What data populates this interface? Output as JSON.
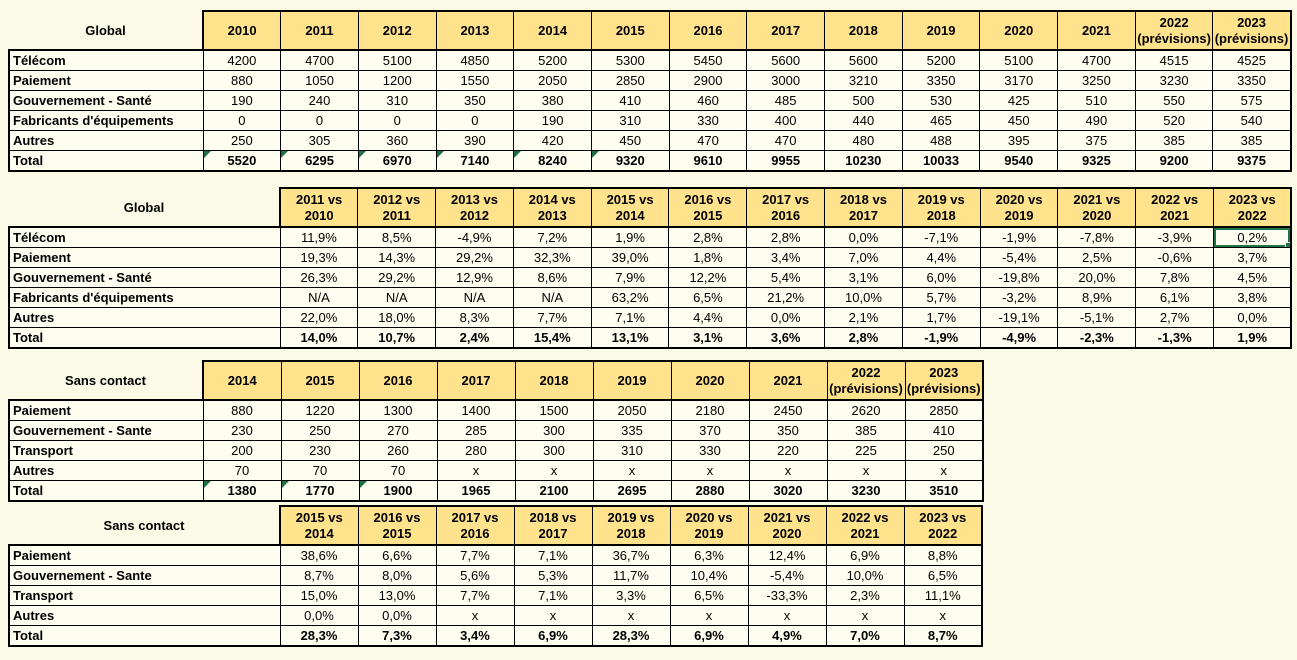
{
  "app": {
    "kind": "spreadsheet-screenshot"
  },
  "colors": {
    "page_background": "#FAFAE6",
    "cell_background": "#FDFDF0",
    "header_fill": "#FFE28C",
    "border": "#000000",
    "error_triangle": "#1E7145",
    "selection_border": "#217346"
  },
  "tables": [
    {
      "id": "global-values",
      "title": "Global",
      "columns": [
        "2010",
        "2011",
        "2012",
        "2013",
        "2014",
        "2015",
        "2016",
        "2017",
        "2018",
        "2019",
        "2020",
        "2021",
        "2022 (prévisions)",
        "2023 (prévisions)"
      ],
      "rows": [
        {
          "label": "Télécom",
          "values": [
            "4200",
            "4700",
            "5100",
            "4850",
            "5200",
            "5300",
            "5450",
            "5600",
            "5600",
            "5200",
            "5100",
            "4700",
            "4515",
            "4525"
          ]
        },
        {
          "label": "Paiement",
          "values": [
            "880",
            "1050",
            "1200",
            "1550",
            "2050",
            "2850",
            "2900",
            "3000",
            "3210",
            "3350",
            "3170",
            "3250",
            "3230",
            "3350"
          ]
        },
        {
          "label": "Gouvernement - Santé",
          "values": [
            "190",
            "240",
            "310",
            "350",
            "380",
            "410",
            "460",
            "485",
            "500",
            "530",
            "425",
            "510",
            "550",
            "575"
          ]
        },
        {
          "label": "Fabricants d'équipements",
          "values": [
            "0",
            "0",
            "0",
            "0",
            "190",
            "310",
            "330",
            "400",
            "440",
            "465",
            "450",
            "490",
            "520",
            "540"
          ]
        },
        {
          "label": "Autres",
          "values": [
            "250",
            "305",
            "360",
            "390",
            "420",
            "450",
            "470",
            "470",
            "480",
            "488",
            "395",
            "375",
            "385",
            "385"
          ]
        },
        {
          "label": "Total",
          "is_total": true,
          "triangles": [
            0,
            1,
            2,
            3,
            4,
            5
          ],
          "values": [
            "5520",
            "6295",
            "6970",
            "7140",
            "8240",
            "9320",
            "9610",
            "9955",
            "10230",
            "10033",
            "9540",
            "9325",
            "9200",
            "9375"
          ]
        }
      ]
    },
    {
      "id": "global-growth",
      "title": "Global",
      "columns": [
        "2011 vs 2010",
        "2012 vs 2011",
        "2013 vs 2012",
        "2014 vs 2013",
        "2015 vs 2014",
        "2016 vs 2015",
        "2017 vs 2016",
        "2018 vs 2017",
        "2019 vs 2018",
        "2020 vs 2019",
        "2021 vs 2020",
        "2022 vs 2021",
        "2023 vs 2022"
      ],
      "rows": [
        {
          "label": "Télécom",
          "values": [
            "11,9%",
            "8,5%",
            "-4,9%",
            "7,2%",
            "1,9%",
            "2,8%",
            "2,8%",
            "0,0%",
            "-7,1%",
            "-1,9%",
            "-7,8%",
            "-3,9%",
            "0,2%"
          ]
        },
        {
          "label": "Paiement",
          "values": [
            "19,3%",
            "14,3%",
            "29,2%",
            "32,3%",
            "39,0%",
            "1,8%",
            "3,4%",
            "7,0%",
            "4,4%",
            "-5,4%",
            "2,5%",
            "-0,6%",
            "3,7%"
          ]
        },
        {
          "label": "Gouvernement - Santé",
          "values": [
            "26,3%",
            "29,2%",
            "12,9%",
            "8,6%",
            "7,9%",
            "12,2%",
            "5,4%",
            "3,1%",
            "6,0%",
            "-19,8%",
            "20,0%",
            "7,8%",
            "4,5%"
          ]
        },
        {
          "label": "Fabricants d'équipements",
          "values": [
            "N/A",
            "N/A",
            "N/A",
            "N/A",
            "63,2%",
            "6,5%",
            "21,2%",
            "10,0%",
            "5,7%",
            "-3,2%",
            "8,9%",
            "6,1%",
            "3,8%"
          ]
        },
        {
          "label": "Autres",
          "values": [
            "22,0%",
            "18,0%",
            "8,3%",
            "7,7%",
            "7,1%",
            "4,4%",
            "0,0%",
            "2,1%",
            "1,7%",
            "-19,1%",
            "-5,1%",
            "2,7%",
            "0,0%"
          ]
        },
        {
          "label": "Total",
          "is_total": true,
          "values": [
            "14,0%",
            "10,7%",
            "2,4%",
            "15,4%",
            "13,1%",
            "3,1%",
            "3,6%",
            "2,8%",
            "-1,9%",
            "-4,9%",
            "-2,3%",
            "-1,3%",
            "1,9%"
          ]
        }
      ]
    },
    {
      "id": "sans-contact-values",
      "title": "Sans contact",
      "columns": [
        "2014",
        "2015",
        "2016",
        "2017",
        "2018",
        "2019",
        "2020",
        "2021",
        "2022 (prévisions)",
        "2023 (prévisions)"
      ],
      "rows": [
        {
          "label": "Paiement",
          "values": [
            "880",
            "1220",
            "1300",
            "1400",
            "1500",
            "2050",
            "2180",
            "2450",
            "2620",
            "2850"
          ]
        },
        {
          "label": "Gouvernement - Sante",
          "values": [
            "230",
            "250",
            "270",
            "285",
            "300",
            "335",
            "370",
            "350",
            "385",
            "410"
          ]
        },
        {
          "label": "Transport",
          "values": [
            "200",
            "230",
            "260",
            "280",
            "300",
            "310",
            "330",
            "220",
            "225",
            "250"
          ]
        },
        {
          "label": "Autres",
          "values": [
            "70",
            "70",
            "70",
            "x",
            "x",
            "x",
            "x",
            "x",
            "x",
            "x"
          ]
        },
        {
          "label": "Total",
          "is_total": true,
          "triangles": [
            0,
            1,
            2
          ],
          "values": [
            "1380",
            "1770",
            "1900",
            "1965",
            "2100",
            "2695",
            "2880",
            "3020",
            "3230",
            "3510"
          ]
        }
      ]
    },
    {
      "id": "sans-contact-growth",
      "title": "Sans contact",
      "columns": [
        "2015 vs 2014",
        "2016 vs 2015",
        "2017 vs 2016",
        "2018 vs 2017",
        "2019 vs 2018",
        "2020 vs 2019",
        "2021 vs 2020",
        "2022 vs 2021",
        "2023 vs 2022"
      ],
      "rows": [
        {
          "label": "Paiement",
          "values": [
            "38,6%",
            "6,6%",
            "7,7%",
            "7,1%",
            "36,7%",
            "6,3%",
            "12,4%",
            "6,9%",
            "8,8%"
          ]
        },
        {
          "label": "Gouvernement - Sante",
          "values": [
            "8,7%",
            "8,0%",
            "5,6%",
            "5,3%",
            "11,7%",
            "10,4%",
            "-5,4%",
            "10,0%",
            "6,5%"
          ]
        },
        {
          "label": "Transport",
          "values": [
            "15,0%",
            "13,0%",
            "7,7%",
            "7,1%",
            "3,3%",
            "6,5%",
            "-33,3%",
            "2,3%",
            "11,1%"
          ]
        },
        {
          "label": "Autres",
          "values": [
            "0,0%",
            "0,0%",
            "x",
            "x",
            "x",
            "x",
            "x",
            "x",
            "x"
          ]
        },
        {
          "label": "Total",
          "is_total": true,
          "values": [
            "28,3%",
            "7,3%",
            "3,4%",
            "6,9%",
            "28,3%",
            "6,9%",
            "4,9%",
            "7,0%",
            "8,7%"
          ]
        }
      ]
    }
  ],
  "selection": {
    "table_index": 1,
    "row_index": 0,
    "col_index": 12,
    "row_label": "Télécom",
    "column": "2023 vs 2022",
    "value": "0,2%"
  }
}
